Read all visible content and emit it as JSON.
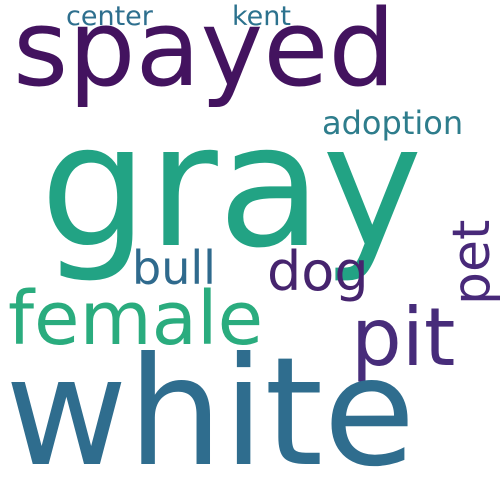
{
  "words": {
    "gray": {
      "text": "gray",
      "color": "#22a384"
    },
    "white": {
      "text": "white",
      "color": "#2f6d8e"
    },
    "spayed": {
      "text": "spayed",
      "color": "#43135f"
    },
    "female": {
      "text": "female",
      "color": "#2aac7e"
    },
    "pit": {
      "text": "pit",
      "color": "#472c7a"
    },
    "bull": {
      "text": "bull",
      "color": "#2f6a8d"
    },
    "dog": {
      "text": "dog",
      "color": "#46246e"
    },
    "pet": {
      "text": "pet",
      "color": "#482979"
    },
    "adoption": {
      "text": "adoption",
      "color": "#2e7d8c"
    },
    "center": {
      "text": "center",
      "color": "#2e6f8e"
    },
    "kent": {
      "text": "kent",
      "color": "#2c728e"
    },
    "extra": {
      "text": "",
      "color": "#35b779"
    }
  }
}
